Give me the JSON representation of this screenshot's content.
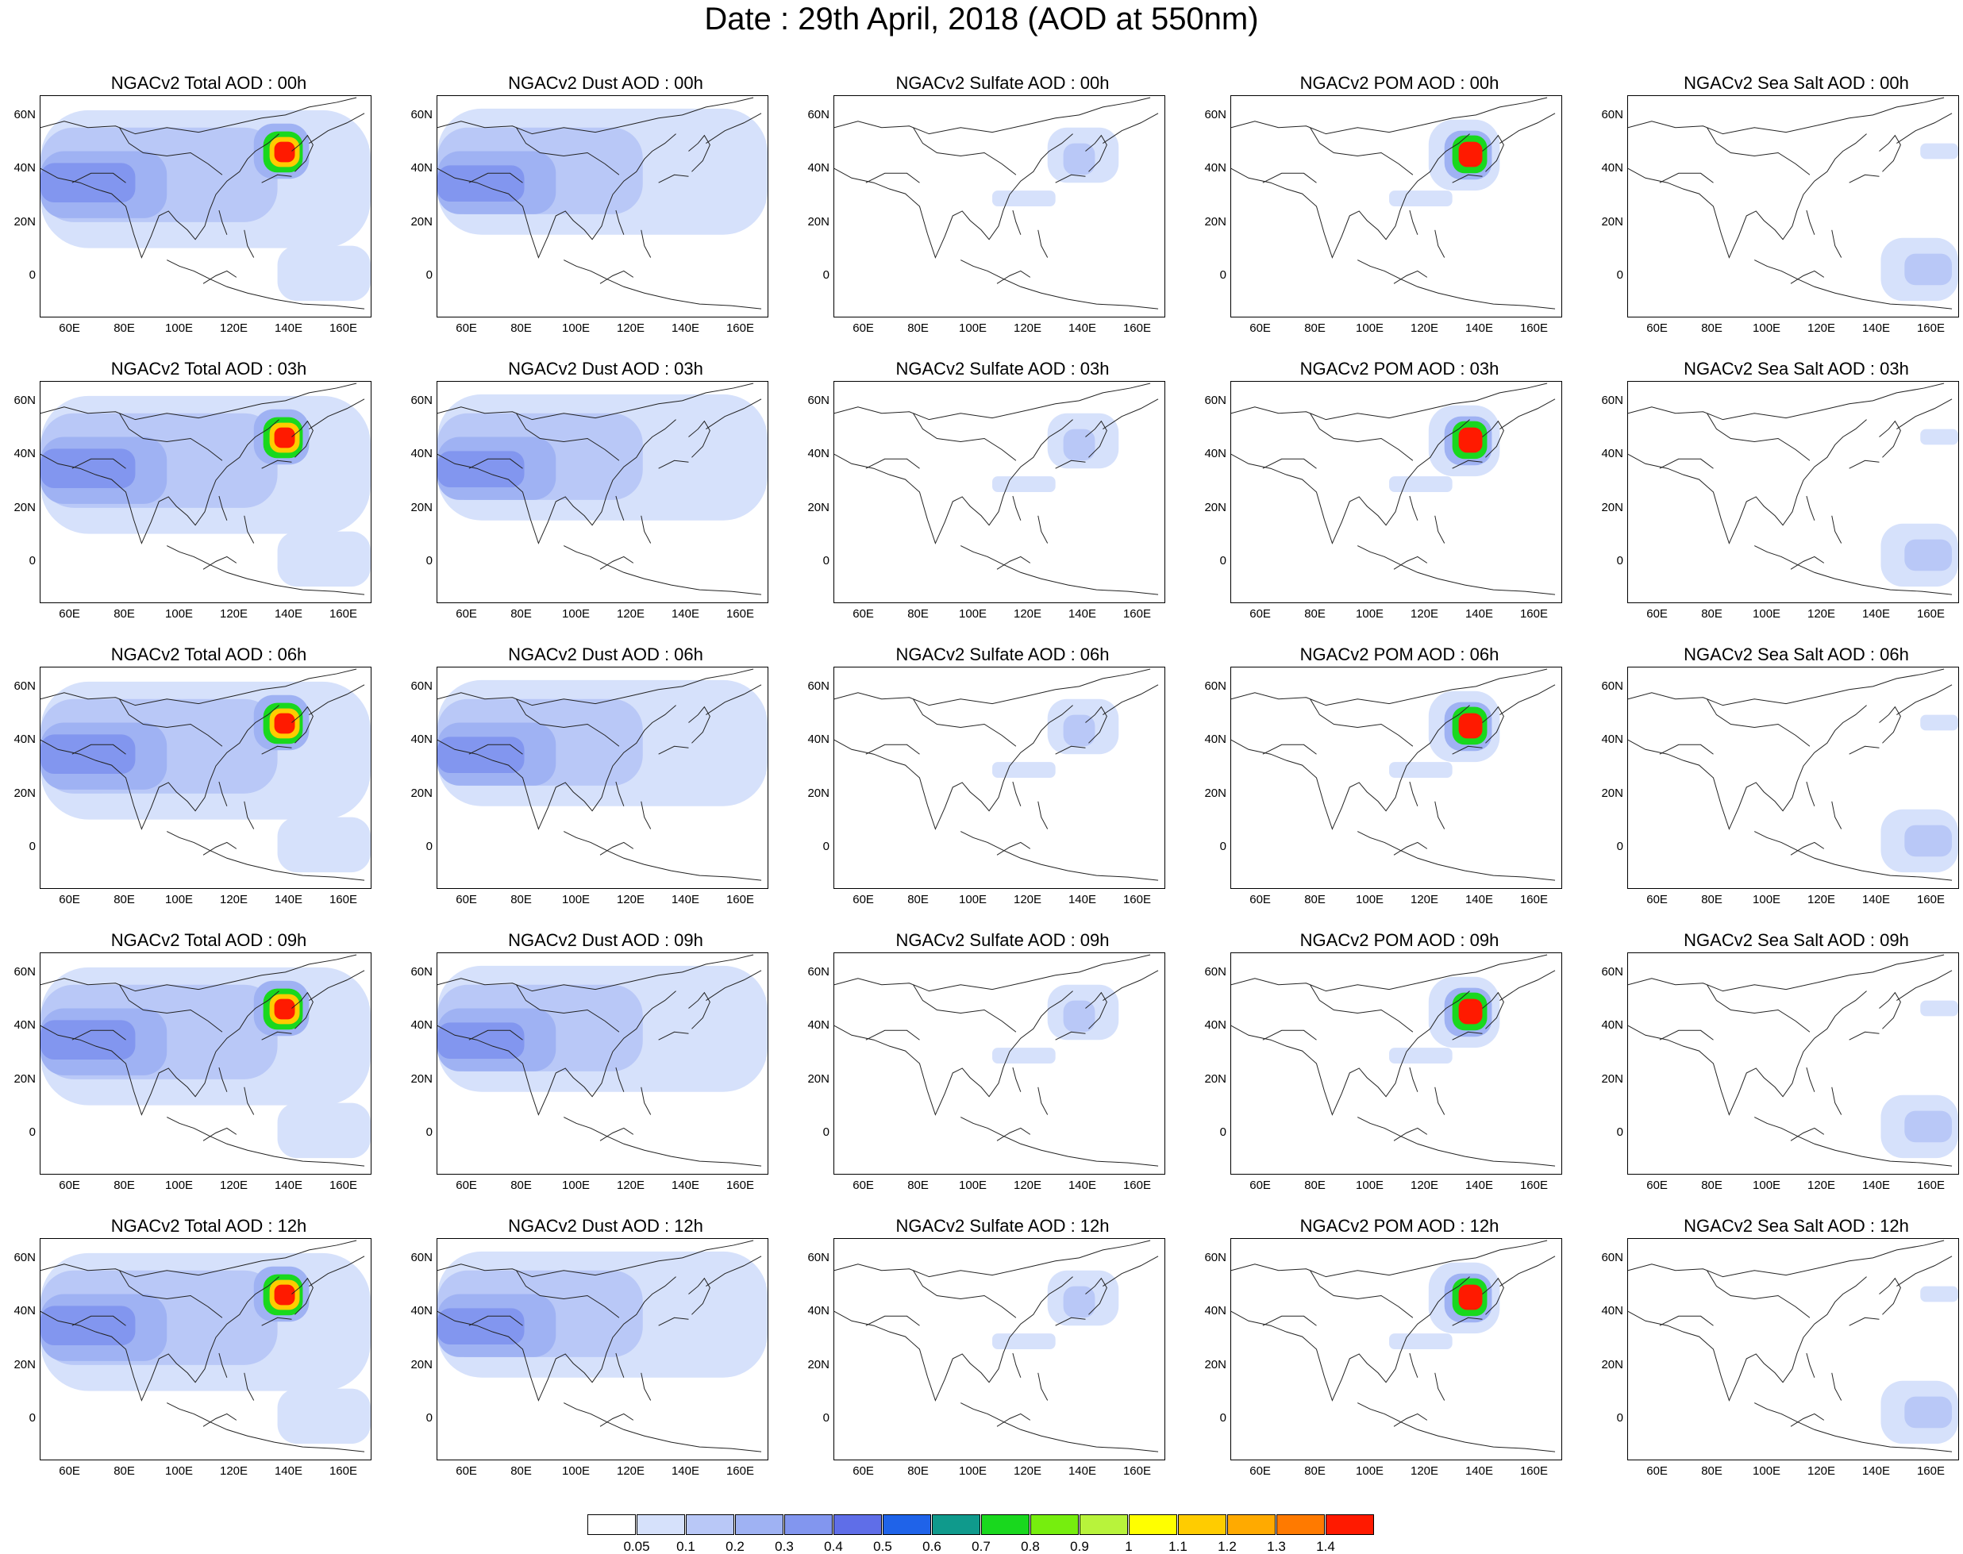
{
  "title": "Date : 29th April, 2018 (AOD at 550nm)",
  "panels": [
    [
      "NGACv2 Total AOD : 00h",
      "NGACv2 Dust AOD : 00h",
      "NGACv2 Sulfate AOD : 00h",
      "NGACv2 POM AOD : 00h",
      "NGACv2 Sea Salt AOD : 00h"
    ],
    [
      "NGACv2 Total AOD : 03h",
      "NGACv2 Dust AOD : 03h",
      "NGACv2 Sulfate AOD : 03h",
      "NGACv2 POM AOD : 03h",
      "NGACv2 Sea Salt AOD : 03h"
    ],
    [
      "NGACv2 Total AOD : 06h",
      "NGACv2 Dust AOD : 06h",
      "NGACv2 Sulfate AOD : 06h",
      "NGACv2 POM AOD : 06h",
      "NGACv2 Sea Salt AOD : 06h"
    ],
    [
      "NGACv2 Total AOD : 09h",
      "NGACv2 Dust AOD : 09h",
      "NGACv2 Sulfate AOD : 09h",
      "NGACv2 POM AOD : 09h",
      "NGACv2 Sea Salt  AOD : 09h"
    ],
    [
      "NGACv2 Total AOD  : 12h",
      "NGACv2 Dust AOD : 12h",
      "NGACv2 Sulfate AOD : 12h",
      "NGACv2 POM  AOD : 12h",
      "NGACv2 Sea Salt  AOD : 12h"
    ]
  ],
  "lat_ticks": [
    "60N",
    "40N",
    "20N",
    "0"
  ],
  "lon_ticks": [
    "60E",
    "80E",
    "100E",
    "120E",
    "140E",
    "160E"
  ],
  "colorbar": {
    "colors": [
      "#ffffff",
      "#d6e1fb",
      "#b9c8f7",
      "#9fb2f3",
      "#8296ef",
      "#5f6ee8",
      "#1f63e9",
      "#0f9a8c",
      "#19d81e",
      "#76ee0e",
      "#b8f33b",
      "#ffff00",
      "#ffcc00",
      "#ffaa00",
      "#ff7a00",
      "#ff1a00"
    ],
    "labels": [
      "0.05",
      "0.1",
      "0.2",
      "0.3",
      "0.4",
      "0.5",
      "0.6",
      "0.7",
      "0.8",
      "0.9",
      "1",
      "1.1",
      "1.2",
      "1.3",
      "1.4"
    ]
  }
}
